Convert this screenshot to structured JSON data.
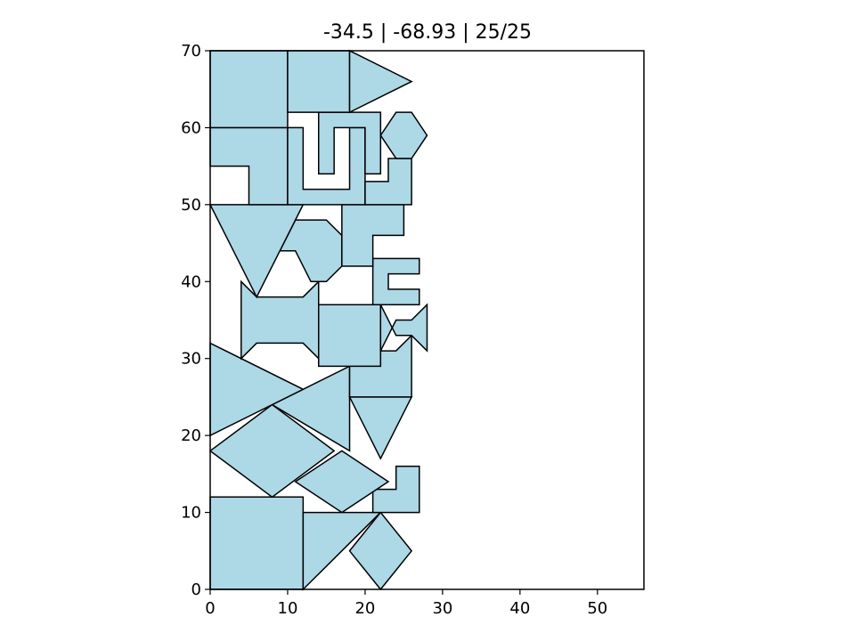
{
  "chart_data": {
    "type": "polygon-packing",
    "title": "-34.5 | -68.93 | 25/25",
    "xlim": [
      0,
      56
    ],
    "ylim": [
      0,
      70
    ],
    "xticks": [
      "0",
      "10",
      "20",
      "30",
      "40",
      "50"
    ],
    "yticks": [
      "0",
      "10",
      "20",
      "30",
      "40",
      "50",
      "60",
      "70"
    ],
    "grid": false,
    "fill_color": "#add8e6",
    "edge_color": "#000000",
    "shapes": [
      {
        "name": "square-bottom-left",
        "points": [
          [
            0,
            0
          ],
          [
            12,
            0
          ],
          [
            12,
            12
          ],
          [
            0,
            12
          ]
        ]
      },
      {
        "name": "triangle-bottom-middle",
        "points": [
          [
            12,
            0
          ],
          [
            22,
            10
          ],
          [
            12,
            10
          ]
        ]
      },
      {
        "name": "diamond-bottom-right",
        "points": [
          [
            22,
            0
          ],
          [
            26,
            5
          ],
          [
            22,
            10
          ],
          [
            18,
            5
          ]
        ]
      },
      {
        "name": "l-shape-bottom-right",
        "points": [
          [
            21,
            10
          ],
          [
            27,
            10
          ],
          [
            27,
            16
          ],
          [
            24,
            16
          ],
          [
            24,
            13
          ],
          [
            21,
            13
          ]
        ]
      },
      {
        "name": "diamond-lower-middle",
        "points": [
          [
            17,
            10
          ],
          [
            23,
            14
          ],
          [
            17,
            18
          ],
          [
            11,
            14
          ]
        ]
      },
      {
        "name": "diamond-lower-left",
        "points": [
          [
            0,
            18
          ],
          [
            8,
            24
          ],
          [
            16,
            18
          ],
          [
            8,
            12
          ]
        ]
      },
      {
        "name": "triangle-lower-middle",
        "points": [
          [
            8,
            24
          ],
          [
            18,
            29
          ],
          [
            18,
            18
          ]
        ]
      },
      {
        "name": "triangle-left-middle",
        "points": [
          [
            0,
            20
          ],
          [
            0,
            32
          ],
          [
            12,
            26
          ]
        ]
      },
      {
        "name": "inverted-triangle-right",
        "points": [
          [
            18,
            25
          ],
          [
            26,
            25
          ],
          [
            22,
            17
          ]
        ]
      },
      {
        "name": "bowtie-rect-lower-right",
        "points": [
          [
            18,
            25
          ],
          [
            26,
            25
          ],
          [
            26,
            33
          ],
          [
            24,
            31
          ],
          [
            20,
            31
          ],
          [
            18,
            33
          ]
        ]
      },
      {
        "name": "square-middle",
        "points": [
          [
            14,
            29
          ],
          [
            22,
            29
          ],
          [
            22,
            37
          ],
          [
            14,
            37
          ]
        ]
      },
      {
        "name": "bowtie-small-right",
        "points": [
          [
            22,
            31
          ],
          [
            24,
            35
          ],
          [
            26,
            35
          ],
          [
            28,
            37
          ],
          [
            28,
            31
          ],
          [
            26,
            33
          ],
          [
            24,
            33
          ],
          [
            22,
            37
          ]
        ]
      },
      {
        "name": "bowtie-middle-left",
        "points": [
          [
            4,
            30
          ],
          [
            6,
            32
          ],
          [
            12,
            32
          ],
          [
            14,
            30
          ],
          [
            14,
            40
          ],
          [
            12,
            38
          ],
          [
            6,
            38
          ],
          [
            4,
            40
          ]
        ]
      },
      {
        "name": "c-shape-right",
        "points": [
          [
            21,
            37
          ],
          [
            27,
            37
          ],
          [
            27,
            39
          ],
          [
            23,
            39
          ],
          [
            23,
            41
          ],
          [
            27,
            41
          ],
          [
            27,
            43
          ],
          [
            21,
            43
          ]
        ]
      },
      {
        "name": "hexagon-middle",
        "points": [
          [
            11,
            44
          ],
          [
            13,
            40
          ],
          [
            15,
            40
          ],
          [
            17,
            42
          ],
          [
            17,
            46
          ],
          [
            15,
            48
          ],
          [
            11,
            48
          ],
          [
            9,
            44
          ]
        ]
      },
      {
        "name": "l-shape-upper-right",
        "points": [
          [
            17,
            42
          ],
          [
            21,
            42
          ],
          [
            21,
            46
          ],
          [
            25,
            46
          ],
          [
            25,
            50
          ],
          [
            17,
            50
          ]
        ]
      },
      {
        "name": "inverted-triangle-left",
        "points": [
          [
            0,
            50
          ],
          [
            12,
            50
          ],
          [
            6,
            38
          ]
        ]
      },
      {
        "name": "l-shape-upper-left",
        "points": [
          [
            5,
            50
          ],
          [
            10,
            50
          ],
          [
            10,
            60
          ],
          [
            0,
            60
          ],
          [
            0,
            55
          ],
          [
            5,
            55
          ]
        ]
      },
      {
        "name": "u-shape-upper-middle",
        "points": [
          [
            10,
            50
          ],
          [
            20,
            50
          ],
          [
            20,
            60
          ],
          [
            18,
            60
          ],
          [
            18,
            52
          ],
          [
            12,
            52
          ],
          [
            12,
            60
          ],
          [
            10,
            60
          ]
        ]
      },
      {
        "name": "u-shape-upper-right",
        "points": [
          [
            14,
            54
          ],
          [
            16,
            54
          ],
          [
            16,
            60
          ],
          [
            20,
            60
          ],
          [
            20,
            54
          ],
          [
            22,
            54
          ],
          [
            22,
            62
          ],
          [
            14,
            62
          ]
        ]
      },
      {
        "name": "l-shape-right-of-u",
        "points": [
          [
            20,
            50
          ],
          [
            26,
            50
          ],
          [
            26,
            56
          ],
          [
            23,
            56
          ],
          [
            23,
            53
          ],
          [
            20,
            53
          ]
        ]
      },
      {
        "name": "hexagon-upper-right",
        "points": [
          [
            22,
            59
          ],
          [
            24,
            56
          ],
          [
            26,
            56
          ],
          [
            28,
            59
          ],
          [
            26,
            62
          ],
          [
            24,
            62
          ]
        ]
      },
      {
        "name": "square-top-left",
        "points": [
          [
            0,
            60
          ],
          [
            10,
            60
          ],
          [
            10,
            70
          ],
          [
            0,
            70
          ]
        ]
      },
      {
        "name": "square-top-middle",
        "points": [
          [
            10,
            62
          ],
          [
            18,
            62
          ],
          [
            18,
            70
          ],
          [
            10,
            70
          ]
        ]
      },
      {
        "name": "triangle-top-right",
        "points": [
          [
            18,
            62
          ],
          [
            26,
            66
          ],
          [
            18,
            70
          ]
        ]
      }
    ]
  }
}
